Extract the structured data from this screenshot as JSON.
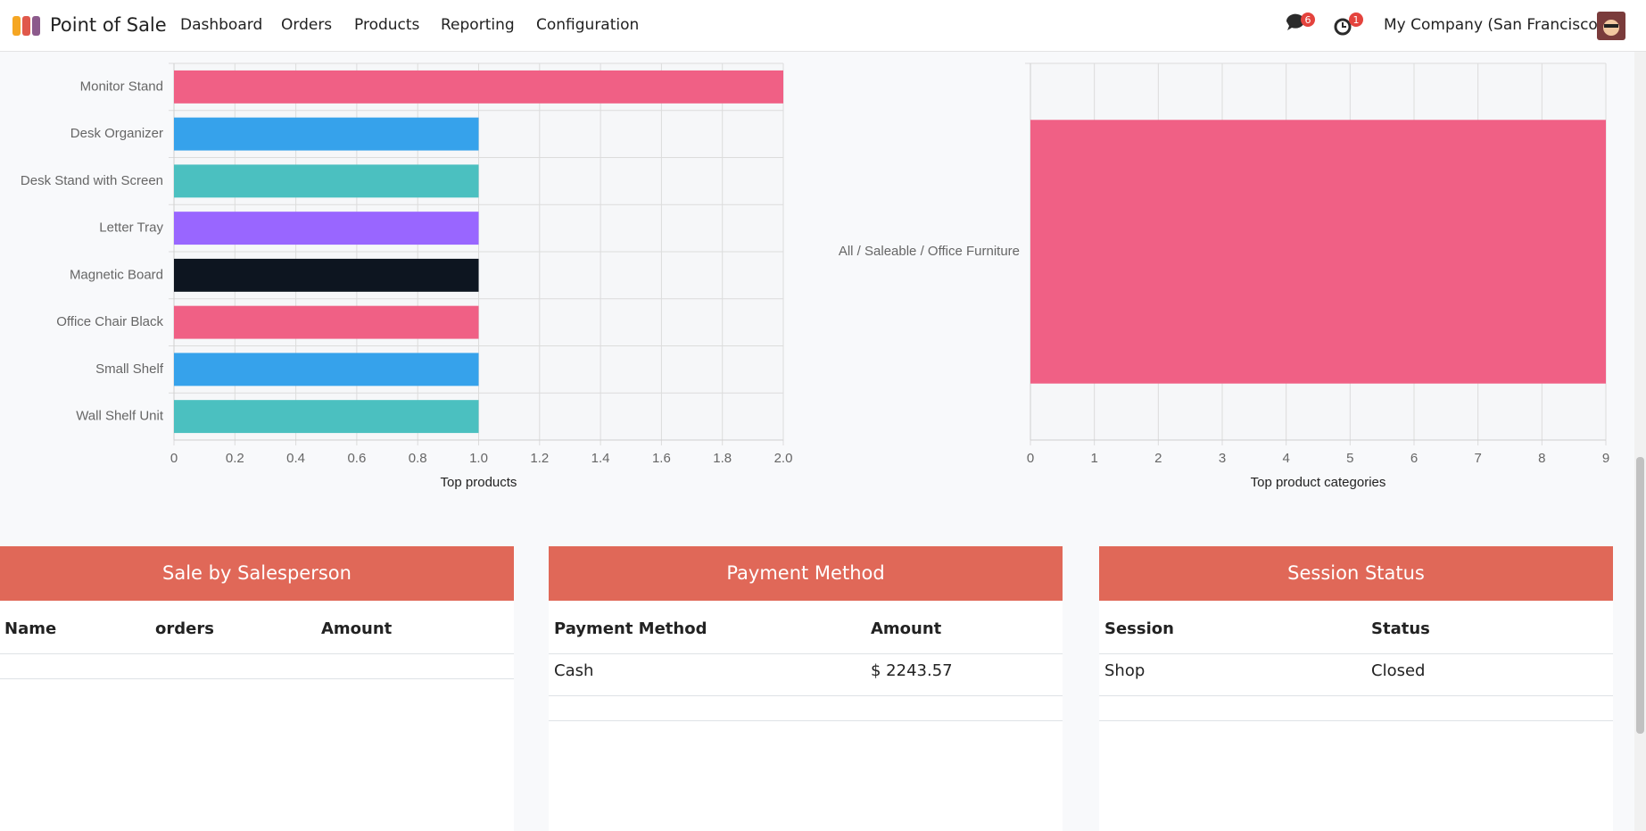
{
  "navbar": {
    "app_name": "Point of Sale",
    "menu": [
      "Dashboard",
      "Orders",
      "Products",
      "Reporting",
      "Configuration"
    ],
    "messages_badge": 6,
    "activities_badge": 1,
    "company": "My Company (San Francisco)"
  },
  "chart_data": [
    {
      "type": "bar",
      "orientation": "horizontal",
      "x_label": "Top products",
      "categories": [
        "Monitor Stand",
        "Desk Organizer",
        "Desk Stand with Screen",
        "Letter Tray",
        "Magnetic Board",
        "Office Chair Black",
        "Small Shelf",
        "Wall Shelf Unit"
      ],
      "values": [
        2,
        1,
        1,
        1,
        1,
        1,
        1,
        1
      ],
      "colors": [
        "#f06085",
        "#36a2eb",
        "#4bc0c0",
        "#9966ff",
        "#0d1520",
        "#f06085",
        "#36a2eb",
        "#4bc0c0"
      ],
      "xlim": [
        0,
        2
      ],
      "xticks": [
        0,
        0.2,
        0.4,
        0.6,
        0.8,
        {
          "value": 1,
          "label": "1.0"
        },
        1.2,
        1.4,
        1.6,
        1.8,
        {
          "value": 2,
          "label": "2.0"
        }
      ],
      "grid": true
    },
    {
      "type": "bar",
      "orientation": "horizontal",
      "x_label": "Top product categories",
      "categories": [
        "All / Saleable / Office Furniture"
      ],
      "values": [
        9
      ],
      "colors": [
        "#f06085"
      ],
      "xlim": [
        0,
        9
      ],
      "xticks": [
        0,
        1,
        2,
        3,
        4,
        5,
        6,
        7,
        8,
        9
      ],
      "grid": true
    }
  ],
  "panels": [
    {
      "title": "Sale by Salesperson",
      "columns": [
        "Name",
        "orders",
        "Amount"
      ],
      "rows": []
    },
    {
      "title": "Payment Method",
      "columns": [
        "Payment Method",
        "Amount"
      ],
      "rows": [
        [
          "Cash",
          "$ 2243.57"
        ]
      ]
    },
    {
      "title": "Session Status",
      "columns": [
        "Session",
        "Status"
      ],
      "rows": [
        [
          "Shop",
          "Closed"
        ]
      ]
    }
  ]
}
